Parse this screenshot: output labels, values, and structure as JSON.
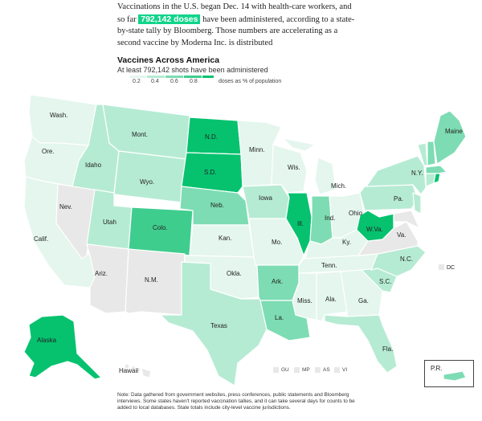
{
  "intro": {
    "before": "Vaccinations in the U.S. began Dec. 14 with health-care workers, and so far",
    "highlight": "792,142 doses",
    "after": "have been administered, according to a state-by-state tally by Bloomberg. Those numbers are accelerating as a second vaccine by Moderna Inc. is distributed"
  },
  "map": {
    "title": "Vaccines Across America",
    "subtitle": "At least 792,142 shots have been administered",
    "legend": {
      "ticks": [
        "0.2",
        "0.4",
        "0.6",
        "0.8"
      ],
      "note": "doses as % of population",
      "colors": [
        "#e4f6ee",
        "#b6ebd3",
        "#7ddcb3",
        "#3fcd8e",
        "#06c26f"
      ]
    },
    "states": {
      "wash": "Wash.",
      "ore": "Ore.",
      "calif": "Calif.",
      "nev": "Nev.",
      "idaho": "Idaho",
      "mont": "Mont.",
      "wyo": "Wyo.",
      "utah": "Utah",
      "ariz": "Ariz.",
      "colo": "Colo.",
      "nm": "N.M.",
      "nd": "N.D.",
      "sd": "S.D.",
      "neb": "Neb.",
      "kan": "Kan.",
      "okla": "Okla.",
      "texas": "Texas",
      "minn": "Minn.",
      "iowa": "Iowa",
      "mo": "Mo.",
      "ark": "Ark.",
      "la": "La.",
      "wis": "Wis.",
      "ill": "Ill.",
      "mich": "Mich.",
      "ind": "Ind.",
      "ohio": "Ohio",
      "ky": "Ky.",
      "tenn": "Tenn.",
      "miss": "Miss.",
      "ala": "Ala.",
      "ga": "Ga.",
      "fla": "Fla.",
      "sc": "S.C.",
      "nc": "N.C.",
      "va": "Va.",
      "wva": "W.Va.",
      "pa": "Pa.",
      "ny": "N.Y.",
      "maine": "Maine",
      "alaska": "Alaska",
      "hawaii": "Hawaii",
      "dc": "DC",
      "pr": "P.R."
    },
    "territories": [
      "GU",
      "MP",
      "AS",
      "VI"
    ]
  },
  "note": "Note: Data gathered from government websites, press conferences, public statements and Bloomberg interviews. Some states haven't reported vaccination tallies, and it can take several days for counts to be added to local databases. State totals include city-level vaccine jurisdictions."
}
